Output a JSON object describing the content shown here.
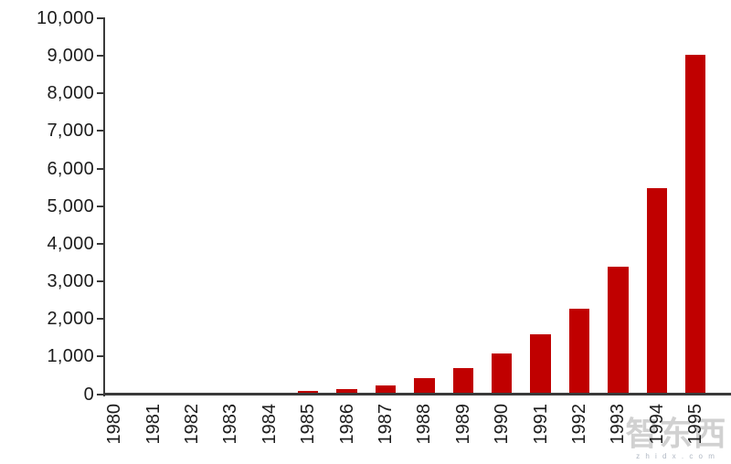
{
  "chart_data": {
    "type": "bar",
    "title": "",
    "xlabel": "",
    "ylabel": "",
    "categories": [
      "1980",
      "1981",
      "1982",
      "1983",
      "1984",
      "1985",
      "1986",
      "1987",
      "1988",
      "1989",
      "1990",
      "1991",
      "1992",
      "1993",
      "1994",
      "1995"
    ],
    "values": [
      2,
      3,
      6,
      12,
      42,
      86,
      140,
      240,
      420,
      700,
      1080,
      1590,
      2280,
      3400,
      5490,
      9030
    ],
    "ylim": [
      0,
      10000
    ],
    "ytick_interval": 1000,
    "ytick_labels": [
      "0",
      "1,000",
      "2,000",
      "3,000",
      "4,000",
      "5,000",
      "6,000",
      "7,000",
      "8,000",
      "9,000",
      "10,000"
    ],
    "grid": false,
    "legend": false,
    "bar_color": "#C00000"
  },
  "colors": {
    "bar": "#C00000",
    "axis": "#3a3a3a",
    "label": "#1c1c1c",
    "watermark": "#acacac",
    "background": "#ffffff"
  },
  "watermark": {
    "brand_text": "智东西",
    "sub_text": "z h i d x . c o m"
  }
}
